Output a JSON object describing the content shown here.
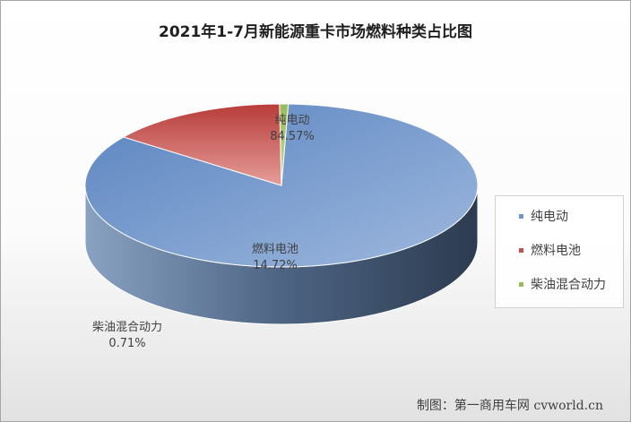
{
  "chart_data": {
    "type": "pie",
    "title": "2021年1-7月新能源重卡市场燃料种类占比图",
    "slices": [
      {
        "label": "纯电动",
        "value": 84.57,
        "value_text": "84.57%",
        "color": "#6f96cc"
      },
      {
        "label": "燃料电池",
        "value": 14.72,
        "value_text": "14.72%",
        "color": "#c0504d"
      },
      {
        "label": "柴油混合动力",
        "value": 0.71,
        "value_text": "0.71%",
        "color": "#9bbb59"
      }
    ],
    "legend_position": "right"
  },
  "source": "制图：第一商用车网 cvworld.cn"
}
